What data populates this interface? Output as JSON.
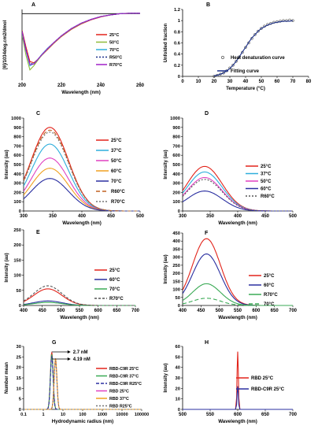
{
  "chart_data": [
    {
      "panel": "A",
      "type": "line",
      "xlabel": "Wavelength (nm)",
      "ylabel": "[θ]/1034deg.cm2/dmol",
      "xlim": [
        200,
        260
      ],
      "ylim": [
        -16,
        1
      ],
      "xticks": [
        200,
        220,
        240,
        260
      ],
      "legend": "right",
      "series": [
        {
          "name": "25°C",
          "color": "#e2231a",
          "dash": "",
          "x": [
            200,
            202,
            204,
            206,
            208,
            210,
            213,
            216,
            220,
            225,
            230,
            235,
            240,
            245,
            250,
            255,
            260
          ],
          "y": [
            -4,
            -8,
            -11.5,
            -11.8,
            -11,
            -10,
            -8.6,
            -7.2,
            -5.5,
            -3.8,
            -2.5,
            -1.5,
            -0.8,
            -0.3,
            0,
            0.1,
            0.1
          ]
        },
        {
          "name": "50°C",
          "color": "#8fbc3a",
          "dash": "",
          "x": [
            200,
            202,
            204,
            206,
            208,
            210,
            213,
            216,
            220,
            225,
            230,
            235,
            240,
            245,
            250,
            255,
            260
          ],
          "y": [
            -5,
            -10,
            -13.5,
            -12.5,
            -11.2,
            -10,
            -8.5,
            -7.1,
            -5.4,
            -3.7,
            -2.4,
            -1.4,
            -0.7,
            -0.3,
            0,
            0.1,
            0.1
          ]
        },
        {
          "name": "70°C",
          "color": "#2eaedc",
          "dash": "",
          "x": [
            200,
            202,
            204,
            206,
            208,
            210,
            213,
            216,
            220,
            225,
            230,
            235,
            240,
            245,
            250,
            255,
            260
          ],
          "y": [
            -4.5,
            -9,
            -12.5,
            -12,
            -11,
            -9.8,
            -8.3,
            -7,
            -5.3,
            -3.6,
            -2.3,
            -1.4,
            -0.7,
            -0.3,
            0,
            0.1,
            0.1
          ]
        },
        {
          "name": "R50°C",
          "color": "#1a2f8a",
          "dash": "2,2",
          "x": [
            200,
            202,
            204,
            206,
            208,
            210,
            213,
            216,
            220,
            225,
            230,
            235,
            240,
            245,
            250,
            255,
            260
          ],
          "y": [
            -4.2,
            -8.5,
            -12,
            -12,
            -11,
            -9.9,
            -8.4,
            -7,
            -5.3,
            -3.6,
            -2.3,
            -1.4,
            -0.7,
            -0.3,
            0,
            0.1,
            0.1
          ]
        },
        {
          "name": "R70°C",
          "color": "#a020c8",
          "dash": "",
          "x": [
            200,
            202,
            204,
            206,
            208,
            210,
            213,
            216,
            220,
            225,
            230,
            235,
            240,
            245,
            250,
            255,
            260
          ],
          "y": [
            -4.3,
            -8.8,
            -12.2,
            -12.1,
            -11,
            -9.9,
            -8.4,
            -7,
            -5.3,
            -3.6,
            -2.3,
            -1.4,
            -0.7,
            -0.3,
            0,
            0.1,
            0.1
          ]
        }
      ]
    },
    {
      "panel": "B",
      "type": "scatter",
      "xlabel": "Temperature (°C)",
      "ylabel": "Unfolded fraction",
      "xlim": [
        0,
        80
      ],
      "ylim": [
        0,
        1.2
      ],
      "xticks": [
        0,
        10,
        20,
        30,
        40,
        50,
        60,
        70,
        80
      ],
      "yticks": [
        0,
        0.2,
        0.4,
        0.6,
        0.8,
        1,
        1.2
      ],
      "series": [
        {
          "name": "Heat denaturation curve",
          "color": "#555555",
          "kind": "points",
          "x": [
            20,
            22,
            24,
            26,
            28,
            30,
            32,
            34,
            36,
            38,
            40,
            42,
            44,
            46,
            48,
            50,
            52,
            54,
            56,
            58,
            60,
            62,
            64,
            66,
            68,
            70
          ],
          "y": [
            0.0,
            0.02,
            0.04,
            0.06,
            0.1,
            0.15,
            0.2,
            0.27,
            0.35,
            0.43,
            0.52,
            0.6,
            0.68,
            0.75,
            0.81,
            0.86,
            0.9,
            0.93,
            0.95,
            0.97,
            0.98,
            0.99,
            1.0,
            1.0,
            1.01,
            1.0
          ]
        },
        {
          "name": "Fitting curve",
          "color": "#1a2f8a",
          "kind": "line",
          "x": [
            20,
            22,
            24,
            26,
            28,
            30,
            32,
            34,
            36,
            38,
            40,
            42,
            44,
            46,
            48,
            50,
            52,
            54,
            56,
            58,
            60,
            62,
            64,
            66,
            68,
            70
          ],
          "y": [
            0.01,
            0.02,
            0.04,
            0.06,
            0.1,
            0.14,
            0.2,
            0.27,
            0.35,
            0.44,
            0.52,
            0.61,
            0.69,
            0.75,
            0.81,
            0.86,
            0.89,
            0.92,
            0.94,
            0.96,
            0.97,
            0.98,
            0.99,
            0.99,
            0.99,
            1.0
          ]
        }
      ]
    },
    {
      "panel": "C",
      "type": "line",
      "xlabel": "Wavelength (nm)",
      "ylabel": "Intensity (au)",
      "xlim": [
        300,
        500
      ],
      "ylim": [
        0,
        1000
      ],
      "xticks": [
        300,
        350,
        400,
        450,
        500
      ],
      "yticks": [
        0,
        100,
        200,
        300,
        400,
        500,
        600,
        700,
        800,
        900,
        1000
      ],
      "series": [
        {
          "name": "25°C",
          "color": "#e2231a",
          "dash": "",
          "peak": 345,
          "amp": 900
        },
        {
          "name": "37°C",
          "color": "#2eaedc",
          "dash": "",
          "peak": 345,
          "amp": 720
        },
        {
          "name": "50°C",
          "color": "#e040c0",
          "dash": "",
          "peak": 345,
          "amp": 570
        },
        {
          "name": "60°C",
          "color": "#f0a020",
          "dash": "",
          "peak": 345,
          "amp": 460
        },
        {
          "name": "70°C",
          "color": "#2a2fa0",
          "dash": "",
          "peak": 345,
          "amp": 350
        },
        {
          "name": "R60°C",
          "color": "#c06020",
          "dash": "5,3",
          "peak": 345,
          "amp": 870
        },
        {
          "name": "R70°C",
          "color": "#777777",
          "dash": "2,2",
          "peak": 345,
          "amp": 850
        }
      ]
    },
    {
      "panel": "D",
      "type": "line",
      "xlabel": "Wavelength (nm)",
      "ylabel": "Intensity (au)",
      "xlim": [
        300,
        500
      ],
      "ylim": [
        0,
        1000
      ],
      "xticks": [
        300,
        350,
        400,
        450,
        500
      ],
      "yticks": [
        0,
        100,
        200,
        300,
        400,
        500,
        600,
        700,
        800,
        900,
        1000
      ],
      "series": [
        {
          "name": "25°C",
          "color": "#e2231a",
          "dash": "",
          "peak": 340,
          "amp": 480
        },
        {
          "name": "37°C",
          "color": "#2eaedc",
          "dash": "",
          "peak": 340,
          "amp": 420
        },
        {
          "name": "50°C",
          "color": "#e040c0",
          "dash": "",
          "peak": 340,
          "amp": 360
        },
        {
          "name": "60°C",
          "color": "#2a2fa0",
          "dash": "",
          "peak": 340,
          "amp": 215
        },
        {
          "name": "R60°C",
          "color": "#555555",
          "dash": "2,2",
          "peak": 340,
          "amp": 340
        }
      ]
    },
    {
      "panel": "E",
      "type": "line",
      "xlabel": "Wavelength (nm)",
      "ylabel": "Intensity (au)",
      "xlim": [
        400,
        700
      ],
      "ylim": [
        0,
        250
      ],
      "xticks": [
        400,
        450,
        500,
        550,
        600,
        650,
        700
      ],
      "yticks": [
        0,
        50,
        100,
        150,
        200,
        250
      ],
      "series": [
        {
          "name": "25°C",
          "color": "#e2231a",
          "dash": "",
          "peak": 465,
          "amp": 55
        },
        {
          "name": "60°C",
          "color": "#2a2fa0",
          "dash": "",
          "peak": 465,
          "amp": 15
        },
        {
          "name": "70°C",
          "color": "#3aaa55",
          "dash": "",
          "peak": 465,
          "amp": 10
        },
        {
          "name": "R70°C",
          "color": "#555555",
          "dash": "3,2",
          "peak": 465,
          "amp": 65
        }
      ]
    },
    {
      "panel": "F",
      "type": "line",
      "xlabel": "Wavelength (nm)",
      "ylabel": "Intensity (au)",
      "xlim": [
        400,
        700
      ],
      "ylim": [
        0,
        450
      ],
      "xticks": [
        400,
        450,
        500,
        550,
        600,
        650,
        700
      ],
      "yticks": [
        0,
        50,
        100,
        150,
        200,
        250,
        300,
        350,
        400,
        450
      ],
      "series": [
        {
          "name": "25°C",
          "color": "#e2231a",
          "dash": "",
          "peak": 465,
          "amp": 415
        },
        {
          "name": "60°C",
          "color": "#2a2fa0",
          "dash": "",
          "peak": 465,
          "amp": 320
        },
        {
          "name": "R70°C",
          "color": "#3aaa55",
          "dash": "",
          "peak": 465,
          "amp": 135
        },
        {
          "name": "70°C",
          "color": "#3aaa55",
          "dash": "5,3",
          "peak": 465,
          "amp": 45
        }
      ]
    },
    {
      "panel": "G",
      "type": "line",
      "xscale": "log",
      "xlabel": "Hydrodynamic radius (nm)",
      "ylabel": "Number mean",
      "xlim": [
        0.1,
        100000
      ],
      "ylim": [
        0,
        30
      ],
      "xticklabels": [
        "0.1",
        "1",
        "10",
        "100",
        "1000",
        "10000",
        "100000"
      ],
      "yticks": [
        0,
        5,
        10,
        15,
        20,
        25,
        30
      ],
      "annotations": [
        "2.7 nM",
        "4.19 nM"
      ],
      "series": [
        {
          "name": "RBD-C9R 25°C",
          "color": "#e2231a",
          "dash": "",
          "peak": 2.7,
          "amp": 27
        },
        {
          "name": "RBD-C9R 37°C",
          "color": "#3aaa55",
          "dash": "",
          "peak": 2.7,
          "amp": 26
        },
        {
          "name": "RBD-C9R R25°C",
          "color": "#2a2fa0",
          "dash": "4,2",
          "peak": 2.7,
          "amp": 25
        },
        {
          "name": "RBD 25°C",
          "color": "#e040c0",
          "dash": "",
          "peak": 4.19,
          "amp": 24
        },
        {
          "name": "RBD 37°C",
          "color": "#f0a020",
          "dash": "",
          "peak": 4.19,
          "amp": 24
        },
        {
          "name": "RBD R25°C",
          "color": "#777777",
          "dash": "2,2",
          "peak": 4.19,
          "amp": 23
        }
      ]
    },
    {
      "panel": "H",
      "type": "line",
      "xlabel": "Wavelength (nm)",
      "ylabel": "Intensity (au)",
      "xlim": [
        500,
        700
      ],
      "ylim": [
        0,
        60
      ],
      "xticks": [
        500,
        550,
        600,
        650,
        700
      ],
      "yticks": [
        0,
        10,
        20,
        30,
        40,
        50,
        60
      ],
      "series": [
        {
          "name": "RBD 25°C",
          "color": "#e2231a",
          "dash": "",
          "peak": 600,
          "amp": 55
        },
        {
          "name": "RBD-C9R 25°C",
          "color": "#2a2fa0",
          "dash": "",
          "peak": 600,
          "amp": 22
        }
      ]
    }
  ]
}
